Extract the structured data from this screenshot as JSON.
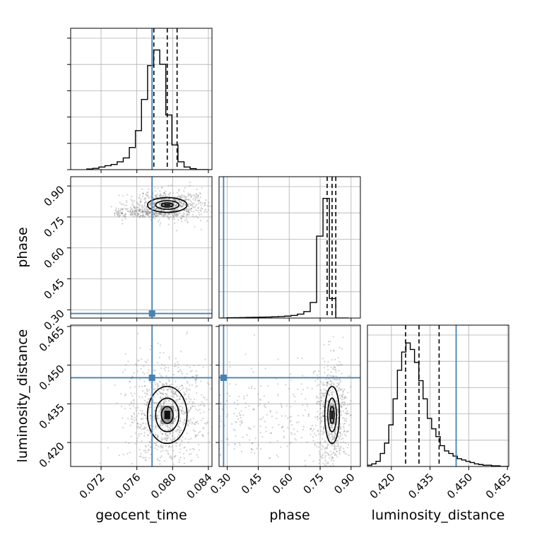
{
  "chart_data": {
    "type": "corner",
    "parameters": [
      "geocent_time",
      "phase",
      "luminosity_distance"
    ],
    "truths": {
      "geocent_time": 0.0777,
      "phase": 0.282,
      "luminosity_distance": 0.4451
    },
    "ranges": {
      "geocent_time": [
        0.0686,
        0.0844
      ],
      "phase": [
        0.26,
        0.945
      ],
      "luminosity_distance": [
        0.4107,
        0.4655
      ]
    },
    "ticks": {
      "geocent_time": [
        "0.072",
        "0.076",
        "0.080",
        "0.084"
      ],
      "phase": [
        "0.30",
        "0.45",
        "0.60",
        "0.75",
        "0.90"
      ],
      "luminosity_distance": [
        "0.420",
        "0.435",
        "0.450",
        "0.465"
      ]
    },
    "quantiles": {
      "geocent_time": [
        0.0779,
        0.0794,
        0.0805
      ],
      "phase": [
        0.784,
        0.808,
        0.826
      ],
      "luminosity_distance": [
        0.4255,
        0.4307,
        0.4385
      ]
    },
    "histograms": {
      "geocent_time": {
        "edges": [
          0.0704,
          0.07108,
          0.07176,
          0.07244,
          0.07312,
          0.0738,
          0.07448,
          0.07516,
          0.07584,
          0.07652,
          0.0772,
          0.07788,
          0.07856,
          0.07924,
          0.07992,
          0.0806,
          0.08128,
          0.08196,
          0.08264,
          0.08332,
          0.084
        ],
        "counts": [
          0.005,
          0.01,
          0.02,
          0.03,
          0.04,
          0.06,
          0.09,
          0.17,
          0.3,
          0.54,
          0.8,
          0.92,
          0.81,
          0.42,
          0.19,
          0.06,
          0.02,
          0.008,
          0.0,
          0.0
        ]
      },
      "phase": {
        "edges": [
          0.268,
          0.299,
          0.33,
          0.361,
          0.392,
          0.423,
          0.454,
          0.485,
          0.516,
          0.547,
          0.578,
          0.609,
          0.64,
          0.671,
          0.702,
          0.733,
          0.764,
          0.795,
          0.826,
          0.857,
          0.888
        ],
        "counts": [
          0.0,
          0.002,
          0.003,
          0.004,
          0.005,
          0.006,
          0.007,
          0.008,
          0.01,
          0.012,
          0.015,
          0.02,
          0.03,
          0.05,
          0.12,
          0.63,
          0.92,
          0.15,
          0.0,
          0.0
        ]
      },
      "luminosity_distance": {
        "edges": [
          0.4107,
          0.41236,
          0.41402,
          0.41568,
          0.41734,
          0.419,
          0.42066,
          0.42232,
          0.42398,
          0.42564,
          0.4273,
          0.42896,
          0.43062,
          0.43228,
          0.43394,
          0.4356,
          0.43726,
          0.43892,
          0.44058,
          0.44224,
          0.4439,
          0.44556,
          0.44722,
          0.44888,
          0.45054,
          0.4522,
          0.45386,
          0.45552,
          0.45718,
          0.45884,
          0.4605,
          0.46216,
          0.46382,
          0.4655
        ],
        "counts": [
          0.01,
          0.02,
          0.04,
          0.1,
          0.18,
          0.32,
          0.52,
          0.74,
          0.88,
          0.95,
          0.9,
          0.8,
          0.66,
          0.52,
          0.37,
          0.29,
          0.23,
          0.16,
          0.12,
          0.1,
          0.08,
          0.06,
          0.05,
          0.04,
          0.03,
          0.02,
          0.015,
          0.01,
          0.01,
          0.005,
          0.005,
          0.0,
          0.0
        ]
      }
    },
    "grid": true,
    "colors": {
      "truth": "#4682b4",
      "line": "#000000",
      "grid": "#b0b0b0",
      "scatter": "#808080"
    }
  }
}
